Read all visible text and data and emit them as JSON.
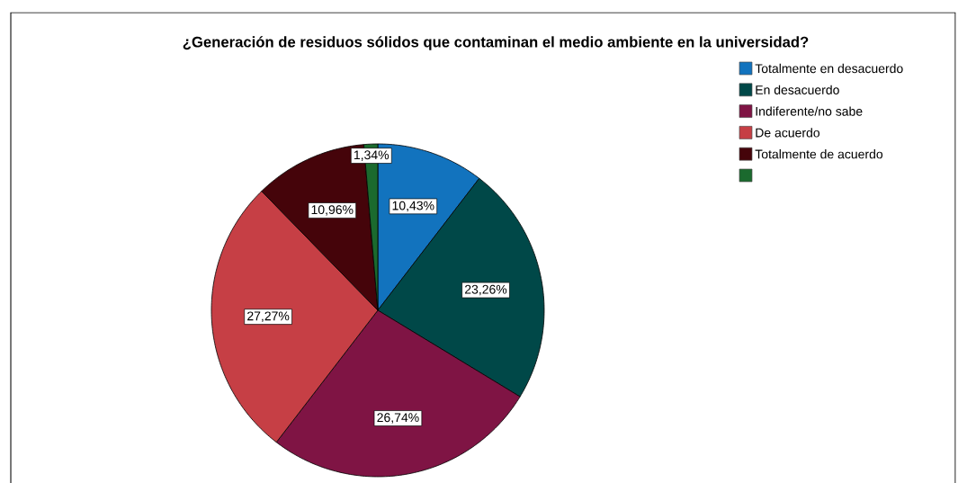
{
  "chart_data": {
    "type": "pie",
    "title": "¿Generación de residuos sólidos que contaminan el medio ambiente en la universidad?",
    "categories": [
      "Totalmente en desacuerdo",
      "En desacuerdo",
      "Indiferente/no sabe",
      "De acuerdo",
      "Totalmente de acuerdo",
      null
    ],
    "values": [
      10.43,
      23.26,
      26.74,
      27.27,
      10.96,
      1.34
    ],
    "value_labels": [
      "10,43%",
      "23,26%",
      "26,74%",
      "27,27%",
      "10,96%",
      "1,34%"
    ],
    "colors": [
      "#1273be",
      "#004848",
      "#7f1444",
      "#c63f45",
      "#45040a",
      "#1b6a2e"
    ],
    "legend": "top right"
  }
}
